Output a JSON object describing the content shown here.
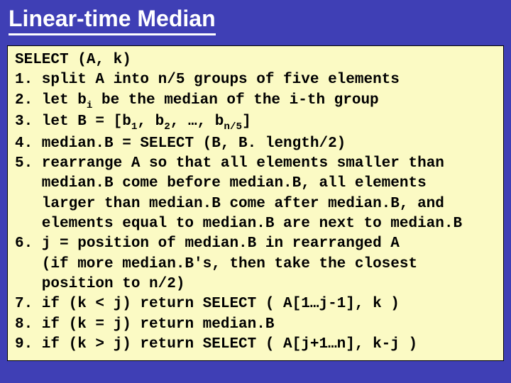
{
  "title": "Linear-time Median",
  "style": {
    "slide_bg": "#3f3fb5",
    "title_color": "#ffffff",
    "title_underline_color": "#ffffff",
    "title_font_family": "Comic Sans MS",
    "title_font_size_pt": 24,
    "title_font_weight": "bold",
    "codebox_bg": "#fbfac4",
    "codebox_border_color": "#000000",
    "code_font_family": "Courier New",
    "code_font_size_pt": 16,
    "code_line_height": 1.35,
    "code_color": "#000000",
    "code_font_weight": "bold"
  },
  "code": {
    "l00": "SELECT (A, k)",
    "l01": "1. split A into n/5 groups of five elements",
    "l02a": "2. let b",
    "l02_sub": "i",
    "l02b": " be the median of the i-th group",
    "l03a": "3. let B = [b",
    "l03_s1": "1",
    "l03b": ", b",
    "l03_s2": "2",
    "l03c": ", …, b",
    "l03_s3": "n/5",
    "l03d": "]",
    "l04": "4. median.B = SELECT (B, B. length/2)",
    "l05": "5. rearrange A so that all elements smaller than",
    "l06": "median.B come before median.B, all elements",
    "l07": "larger than median.B come after median.B, and",
    "l08": "elements equal to median.B are next to median.B",
    "l09": "6. j = position of median.B in rearranged A",
    "l10": "(if more median.B's, then take the closest",
    "l11": "position to n/2)",
    "l12": "7. if (k < j) return SELECT ( A[1…j-1], k )",
    "l13": "8. if (k = j) return median.B",
    "l14": "9. if (k > j) return SELECT ( A[j+1…n], k-j )"
  }
}
